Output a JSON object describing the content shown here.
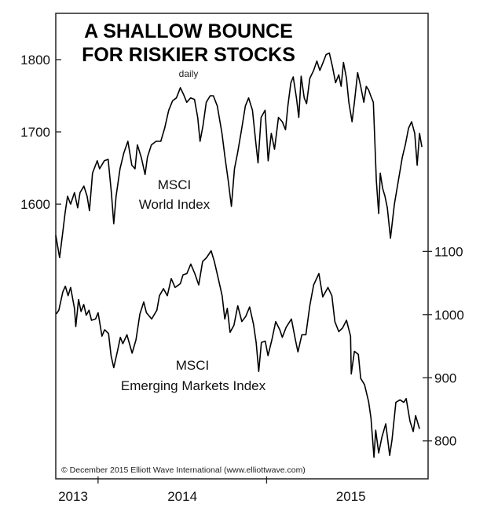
{
  "chart_data": {
    "type": "line",
    "title": [
      "A SHALLOW BOUNCE",
      "FOR RISKIER STOCKS"
    ],
    "subtitle": "daily",
    "credit": "© December 2015 Elliott Wave International (www.elliottwave.com)",
    "x_tick_labels": [
      {
        "label": "2013",
        "at": 2013.45
      },
      {
        "label": "2014",
        "at": 2014.5
      },
      {
        "label": "2015",
        "at": 2015.5
      }
    ],
    "x_ticks": [
      2014.0,
      2015.0
    ],
    "xlim": [
      2013.749,
      2015.958
    ],
    "left_axis": {
      "ticks": [
        1600,
        1700,
        1800
      ],
      "ylim": [
        1220,
        1864
      ]
    },
    "right_axis": {
      "ticks": [
        800,
        900,
        1000,
        1100
      ],
      "ylim": [
        740,
        1477
      ]
    },
    "grid": false,
    "line_color": "#000000",
    "series": [
      {
        "name": "MSCI World Index",
        "name_lines": [
          "MSCI",
          "World Index"
        ],
        "axis": "left",
        "points": [
          [
            2013.749,
            1557
          ],
          [
            2013.772,
            1526
          ],
          [
            2013.791,
            1562
          ],
          [
            2013.805,
            1589
          ],
          [
            2013.819,
            1611
          ],
          [
            2013.837,
            1600
          ],
          [
            2013.86,
            1616
          ],
          [
            2013.879,
            1595
          ],
          [
            2013.893,
            1616
          ],
          [
            2013.916,
            1625
          ],
          [
            2013.935,
            1611
          ],
          [
            2013.949,
            1591
          ],
          [
            2013.967,
            1643
          ],
          [
            2013.995,
            1660
          ],
          [
            2014.009,
            1649
          ],
          [
            2014.037,
            1660
          ],
          [
            2014.06,
            1662
          ],
          [
            2014.079,
            1616
          ],
          [
            2014.093,
            1573
          ],
          [
            2014.107,
            1611
          ],
          [
            2014.13,
            1649
          ],
          [
            2014.153,
            1671
          ],
          [
            2014.177,
            1687
          ],
          [
            2014.2,
            1654
          ],
          [
            2014.219,
            1649
          ],
          [
            2014.233,
            1682
          ],
          [
            2014.256,
            1665
          ],
          [
            2014.279,
            1641
          ],
          [
            2014.293,
            1665
          ],
          [
            2014.316,
            1682
          ],
          [
            2014.344,
            1687
          ],
          [
            2014.372,
            1687
          ],
          [
            2014.395,
            1705
          ],
          [
            2014.419,
            1730
          ],
          [
            2014.442,
            1743
          ],
          [
            2014.465,
            1747
          ],
          [
            2014.488,
            1761
          ],
          [
            2014.507,
            1752
          ],
          [
            2014.526,
            1741
          ],
          [
            2014.549,
            1747
          ],
          [
            2014.572,
            1745
          ],
          [
            2014.591,
            1720
          ],
          [
            2014.605,
            1687
          ],
          [
            2014.623,
            1709
          ],
          [
            2014.642,
            1741
          ],
          [
            2014.665,
            1750
          ],
          [
            2014.684,
            1750
          ],
          [
            2014.707,
            1736
          ],
          [
            2014.735,
            1698
          ],
          [
            2014.753,
            1665
          ],
          [
            2014.772,
            1633
          ],
          [
            2014.791,
            1597
          ],
          [
            2014.809,
            1649
          ],
          [
            2014.828,
            1671
          ],
          [
            2014.851,
            1703
          ],
          [
            2014.874,
            1736
          ],
          [
            2014.893,
            1747
          ],
          [
            2014.916,
            1730
          ],
          [
            2014.935,
            1687
          ],
          [
            2014.949,
            1657
          ],
          [
            2014.967,
            1720
          ],
          [
            2014.991,
            1730
          ],
          [
            2015.009,
            1660
          ],
          [
            2015.028,
            1698
          ],
          [
            2015.047,
            1676
          ],
          [
            2015.07,
            1720
          ],
          [
            2015.093,
            1714
          ],
          [
            2015.112,
            1703
          ],
          [
            2015.126,
            1736
          ],
          [
            2015.144,
            1768
          ],
          [
            2015.158,
            1776
          ],
          [
            2015.177,
            1747
          ],
          [
            2015.191,
            1720
          ],
          [
            2015.205,
            1777
          ],
          [
            2015.223,
            1747
          ],
          [
            2015.237,
            1739
          ],
          [
            2015.256,
            1774
          ],
          [
            2015.279,
            1785
          ],
          [
            2015.298,
            1798
          ],
          [
            2015.316,
            1785
          ],
          [
            2015.335,
            1796
          ],
          [
            2015.353,
            1807
          ],
          [
            2015.372,
            1809
          ],
          [
            2015.391,
            1790
          ],
          [
            2015.409,
            1768
          ],
          [
            2015.428,
            1779
          ],
          [
            2015.442,
            1763
          ],
          [
            2015.456,
            1796
          ],
          [
            2015.474,
            1774
          ],
          [
            2015.488,
            1741
          ],
          [
            2015.507,
            1714
          ],
          [
            2015.521,
            1741
          ],
          [
            2015.54,
            1782
          ],
          [
            2015.558,
            1763
          ],
          [
            2015.577,
            1741
          ],
          [
            2015.591,
            1763
          ],
          [
            2015.605,
            1758
          ],
          [
            2015.619,
            1749
          ],
          [
            2015.633,
            1741
          ],
          [
            2015.642,
            1687
          ],
          [
            2015.651,
            1633
          ],
          [
            2015.665,
            1587
          ],
          [
            2015.674,
            1643
          ],
          [
            2015.688,
            1622
          ],
          [
            2015.702,
            1611
          ],
          [
            2015.716,
            1595
          ],
          [
            2015.735,
            1553
          ],
          [
            2015.758,
            1600
          ],
          [
            2015.805,
            1665
          ],
          [
            2015.823,
            1682
          ],
          [
            2015.842,
            1705
          ],
          [
            2015.86,
            1714
          ],
          [
            2015.879,
            1698
          ],
          [
            2015.893,
            1654
          ],
          [
            2015.907,
            1698
          ],
          [
            2015.921,
            1679
          ]
        ]
      },
      {
        "name": "MSCI Emerging Markets Index",
        "name_lines": [
          "MSCI",
          "Emerging Markets Index"
        ],
        "axis": "right",
        "points": [
          [
            2013.752,
            1001
          ],
          [
            2013.767,
            1007
          ],
          [
            2013.791,
            1036
          ],
          [
            2013.806,
            1045
          ],
          [
            2013.822,
            1030
          ],
          [
            2013.837,
            1043
          ],
          [
            2013.86,
            1010
          ],
          [
            2013.868,
            981
          ],
          [
            2013.884,
            1024
          ],
          [
            2013.899,
            1005
          ],
          [
            2013.915,
            1016
          ],
          [
            2013.93,
            999
          ],
          [
            2013.946,
            1007
          ],
          [
            2013.961,
            991
          ],
          [
            2013.985,
            993
          ],
          [
            2014.0,
            1003
          ],
          [
            2014.023,
            966
          ],
          [
            2014.039,
            976
          ],
          [
            2014.062,
            970
          ],
          [
            2014.077,
            935
          ],
          [
            2014.093,
            916
          ],
          [
            2014.116,
            943
          ],
          [
            2014.132,
            964
          ],
          [
            2014.147,
            954
          ],
          [
            2014.171,
            968
          ],
          [
            2014.202,
            939
          ],
          [
            2014.225,
            960
          ],
          [
            2014.248,
            1001
          ],
          [
            2014.271,
            1020
          ],
          [
            2014.287,
            1003
          ],
          [
            2014.318,
            993
          ],
          [
            2014.349,
            1007
          ],
          [
            2014.364,
            1030
          ],
          [
            2014.388,
            1041
          ],
          [
            2014.411,
            1030
          ],
          [
            2014.434,
            1057
          ],
          [
            2014.457,
            1043
          ],
          [
            2014.488,
            1049
          ],
          [
            2014.504,
            1063
          ],
          [
            2014.527,
            1065
          ],
          [
            2014.55,
            1080
          ],
          [
            2014.574,
            1065
          ],
          [
            2014.597,
            1047
          ],
          [
            2014.62,
            1084
          ],
          [
            2014.643,
            1090
          ],
          [
            2014.671,
            1101
          ],
          [
            2014.69,
            1084
          ],
          [
            2014.713,
            1057
          ],
          [
            2014.736,
            1030
          ],
          [
            2014.752,
            993
          ],
          [
            2014.767,
            1010
          ],
          [
            2014.783,
            972
          ],
          [
            2014.806,
            983
          ],
          [
            2014.829,
            1014
          ],
          [
            2014.853,
            989
          ],
          [
            2014.876,
            997
          ],
          [
            2014.899,
            1012
          ],
          [
            2014.922,
            985
          ],
          [
            2014.938,
            956
          ],
          [
            2014.953,
            910
          ],
          [
            2014.969,
            956
          ],
          [
            2014.992,
            958
          ],
          [
            2015.008,
            935
          ],
          [
            2015.031,
            960
          ],
          [
            2015.054,
            989
          ],
          [
            2015.078,
            976
          ],
          [
            2015.093,
            964
          ],
          [
            2015.116,
            980
          ],
          [
            2015.147,
            993
          ],
          [
            2015.171,
            960
          ],
          [
            2015.186,
            941
          ],
          [
            2015.209,
            968
          ],
          [
            2015.233,
            968
          ],
          [
            2015.256,
            1014
          ],
          [
            2015.279,
            1047
          ],
          [
            2015.31,
            1065
          ],
          [
            2015.333,
            1028
          ],
          [
            2015.364,
            1043
          ],
          [
            2015.387,
            1030
          ],
          [
            2015.405,
            989
          ],
          [
            2015.428,
            973
          ],
          [
            2015.451,
            979
          ],
          [
            2015.474,
            991
          ],
          [
            2015.498,
            966
          ],
          [
            2015.502,
            906
          ],
          [
            2015.521,
            942
          ],
          [
            2015.544,
            937
          ],
          [
            2015.558,
            899
          ],
          [
            2015.581,
            889
          ],
          [
            2015.605,
            862
          ],
          [
            2015.619,
            836
          ],
          [
            2015.637,
            774
          ],
          [
            2015.647,
            817
          ],
          [
            2015.665,
            781
          ],
          [
            2015.684,
            806
          ],
          [
            2015.707,
            827
          ],
          [
            2015.73,
            777
          ],
          [
            2015.744,
            802
          ],
          [
            2015.767,
            861
          ],
          [
            2015.791,
            865
          ],
          [
            2015.814,
            861
          ],
          [
            2015.828,
            867
          ],
          [
            2015.851,
            831
          ],
          [
            2015.87,
            815
          ],
          [
            2015.884,
            840
          ],
          [
            2015.907,
            819
          ]
        ]
      }
    ]
  }
}
